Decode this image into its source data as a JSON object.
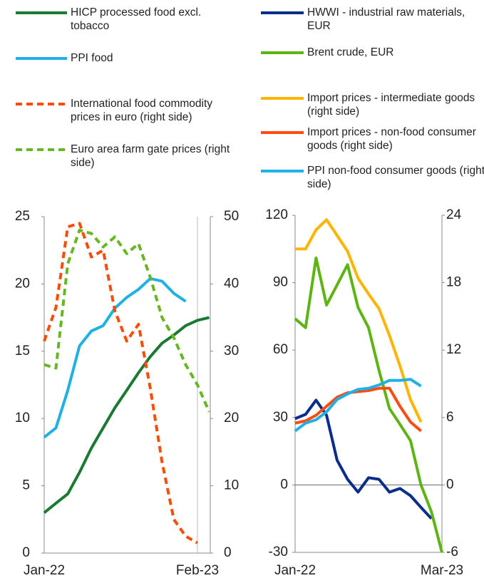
{
  "chart_data": [
    {
      "type": "line",
      "categories": [
        "Jan-22",
        null,
        null,
        null,
        null,
        null,
        null,
        null,
        null,
        null,
        null,
        null,
        null,
        "Feb-23",
        null
      ],
      "ylim": [
        0,
        25
      ],
      "yticks": [
        0,
        5,
        10,
        15,
        20,
        25
      ],
      "y2lim": [
        0,
        50
      ],
      "y2ticks": [
        0,
        10,
        20,
        30,
        40,
        50
      ],
      "series": [
        {
          "name": "HICP processed food excl. tobacco",
          "color": "#1a7a32",
          "dashed": false,
          "values": [
            3.0,
            3.7,
            4.4,
            6.0,
            7.8,
            9.3,
            10.8,
            12.1,
            13.4,
            14.6,
            15.6,
            16.2,
            16.9,
            17.3,
            17.5
          ]
        },
        {
          "name": "PPI food",
          "color": "#1fb0e6",
          "dashed": false,
          "values": [
            8.6,
            9.3,
            12.1,
            15.4,
            16.5,
            16.9,
            18.2,
            19.0,
            19.6,
            20.4,
            20.2,
            19.3,
            18.7,
            null,
            null
          ]
        },
        {
          "name": "International food commodity prices in euro (right side)",
          "color": "#ff4b00",
          "dashed": true,
          "axis": "y2",
          "values": [
            31.5,
            36.5,
            48.5,
            49,
            44,
            45,
            36,
            31.5,
            34,
            24.5,
            13.5,
            5,
            2.5,
            1.5,
            null
          ]
        },
        {
          "name": "Euro area farm gate prices (right side)",
          "color": "#66b821",
          "dashed": true,
          "axis": "y2",
          "values": [
            28,
            27.5,
            43,
            48,
            47.5,
            45.5,
            47,
            44.5,
            46,
            41,
            35,
            32,
            28,
            25,
            21
          ]
        }
      ]
    },
    {
      "type": "line",
      "categories": [
        "Jan-22",
        null,
        null,
        null,
        null,
        null,
        null,
        null,
        null,
        null,
        null,
        null,
        null,
        null,
        "Mar-23"
      ],
      "ylim": [
        -30,
        120
      ],
      "yticks": [
        -30,
        0,
        30,
        60,
        90,
        120
      ],
      "y2lim": [
        -6,
        24
      ],
      "y2ticks": [
        -6,
        0,
        6,
        12,
        18,
        24
      ],
      "series": [
        {
          "name": "HWWI - industrial raw materials, EUR",
          "color": "#0a2d8c",
          "dashed": false,
          "values": [
            29.5,
            31.4,
            37.7,
            31,
            11,
            2.5,
            -3.2,
            3.2,
            2.5,
            -3.2,
            -1.6,
            -4.8,
            -10,
            -15,
            null
          ]
        },
        {
          "name": "Brent crude, EUR",
          "color": "#5db514",
          "dashed": false,
          "values": [
            74,
            70,
            101,
            80,
            89,
            98,
            79,
            70,
            51,
            34,
            27,
            19.7,
            0,
            -12,
            -30
          ]
        },
        {
          "name": "Import prices - intermediate goods (right side)",
          "color": "#ffb400",
          "dashed": false,
          "axis": "y2",
          "values": [
            21,
            21,
            22.7,
            23.6,
            22.2,
            20.8,
            18.4,
            17,
            15.7,
            13.3,
            10.6,
            7.6,
            5.6,
            null,
            null
          ]
        },
        {
          "name": "Import prices - non-food consumer goods (right side)",
          "color": "#ff4b12",
          "dashed": false,
          "axis": "y2",
          "values": [
            5.5,
            5.7,
            6.2,
            7.0,
            7.8,
            8.2,
            8.3,
            8.4,
            8.6,
            8.6,
            7.0,
            5.6,
            4.8,
            null,
            null
          ]
        },
        {
          "name": "PPI non-food consumer goods (right side)",
          "color": "#1fb0e6",
          "dashed": false,
          "axis": "y2",
          "values": [
            4.8,
            5.5,
            5.8,
            6.5,
            7.6,
            8.1,
            8.5,
            8.6,
            8.9,
            9.3,
            9.3,
            9.4,
            8.8,
            null,
            null
          ]
        }
      ]
    }
  ]
}
